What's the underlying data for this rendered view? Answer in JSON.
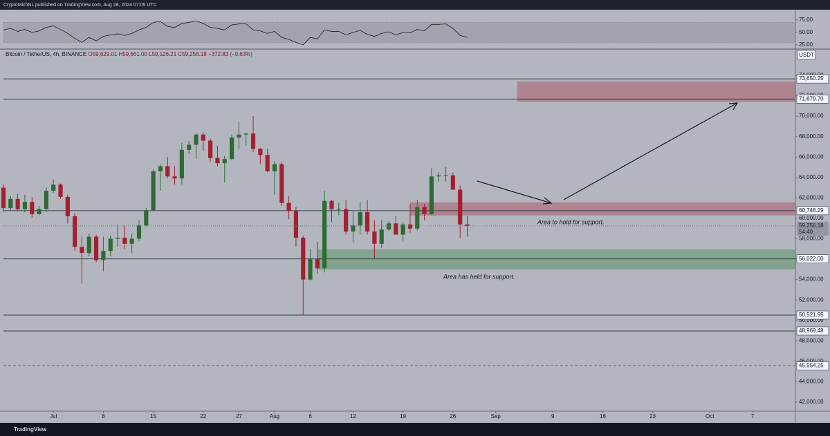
{
  "header": {
    "publisher": "CryptoMichNL published on TradingView.com, Aug 28, 2024 07:05 UTC"
  },
  "footer": {
    "brand": "TradingView"
  },
  "chart_data": [
    {
      "type": "candlestick",
      "symbol": "Bitcoin / TetherUS, 4h, BINANCE",
      "legend": [
        "O59,629.01",
        "H59,661.00",
        "L59,126.21",
        "C59,256.18",
        "−372.83 (−0.63%)"
      ],
      "currency": "USDT",
      "up_color": "#2e6b34",
      "down_color": "#a3212e",
      "x": [
        "06-24",
        "06-25",
        "06-26",
        "06-27",
        "06-28",
        "06-29",
        "06-30",
        "07-01",
        "07-02",
        "07-03",
        "07-04",
        "07-05",
        "07-06",
        "07-07",
        "07-08",
        "07-09",
        "07-10",
        "07-11",
        "07-12",
        "07-13",
        "07-14",
        "07-15",
        "07-16",
        "07-17",
        "07-18",
        "07-19",
        "07-20",
        "07-21",
        "07-22",
        "07-23",
        "07-24",
        "07-25",
        "07-26",
        "07-27",
        "07-28",
        "07-29",
        "07-30",
        "07-31",
        "08-01",
        "08-02",
        "08-03",
        "08-04",
        "08-05",
        "08-06",
        "08-07",
        "08-08",
        "08-09",
        "08-10",
        "08-11",
        "08-12",
        "08-13",
        "08-14",
        "08-15",
        "08-16",
        "08-17",
        "08-18",
        "08-19",
        "08-20",
        "08-21",
        "08-22",
        "08-23",
        "08-24",
        "08-25",
        "08-26",
        "08-27",
        "08-28"
      ],
      "open": [
        63000,
        61000,
        61900,
        60900,
        61600,
        60400,
        60900,
        62700,
        63300,
        62100,
        60200,
        57200,
        56600,
        58200,
        55900,
        56800,
        58000,
        58100,
        57500,
        58000,
        59300,
        60800,
        64600,
        65100,
        64100,
        63900,
        66700,
        67200,
        68200,
        67600,
        65900,
        65400,
        65800,
        67900,
        68200,
        68300,
        66800,
        66200,
        64600,
        65300,
        61500,
        60700,
        58100,
        54000,
        56000,
        55100,
        61700,
        60900,
        60900,
        58700,
        59300,
        60600,
        58700,
        57500,
        58900,
        59500,
        58400,
        59400,
        59000,
        61100,
        60400,
        64100,
        64200,
        64200,
        62800,
        59400
      ],
      "high": [
        63300,
        62200,
        62400,
        62300,
        62100,
        61200,
        63000,
        63800,
        63400,
        62300,
        60500,
        58300,
        58500,
        58400,
        58200,
        58300,
        59400,
        59300,
        58500,
        59800,
        61000,
        64800,
        65300,
        66000,
        65100,
        67400,
        67600,
        68300,
        68400,
        67800,
        67100,
        66100,
        68200,
        69400,
        68300,
        70000,
        66900,
        66800,
        65600,
        65500,
        62200,
        61100,
        58300,
        57000,
        57700,
        62700,
        61800,
        61500,
        61800,
        60700,
        61600,
        61800,
        59800,
        59800,
        59700,
        60200,
        59600,
        61400,
        61800,
        61400,
        64900,
        64500,
        65000,
        64500,
        63200,
        60200
      ],
      "low": [
        60600,
        60800,
        60700,
        60600,
        60100,
        60300,
        60600,
        62500,
        61900,
        59500,
        56800,
        53600,
        56300,
        55700,
        54800,
        56300,
        57200,
        57000,
        56600,
        57800,
        59200,
        60700,
        62700,
        63900,
        63300,
        63300,
        66300,
        65800,
        66600,
        65500,
        65100,
        63500,
        65700,
        66800,
        67100,
        66500,
        65300,
        64500,
        62300,
        61200,
        59900,
        57200,
        50500,
        53900,
        54600,
        54700,
        59600,
        60300,
        58400,
        57600,
        58400,
        58400,
        56100,
        57100,
        58800,
        58400,
        57800,
        58600,
        58800,
        59800,
        60300,
        63600,
        63600,
        62800,
        58100,
        58200
      ],
      "close": [
        61000,
        61900,
        60900,
        61600,
        60400,
        60900,
        62700,
        63300,
        62100,
        60200,
        57200,
        56600,
        58200,
        55900,
        56800,
        58000,
        58100,
        57500,
        58000,
        59300,
        60800,
        64600,
        65100,
        64100,
        63900,
        66700,
        67200,
        68200,
        67600,
        65900,
        65400,
        65800,
        67900,
        68200,
        68300,
        66800,
        66200,
        64600,
        65300,
        61500,
        60700,
        58100,
        54000,
        56000,
        55100,
        61700,
        60900,
        60900,
        58700,
        59300,
        60600,
        58700,
        57500,
        58900,
        59500,
        58400,
        59400,
        59000,
        61100,
        60400,
        64100,
        64200,
        64200,
        62800,
        59400,
        59256.18
      ],
      "xlim": [
        "06-24",
        "10-13"
      ],
      "xticks": [
        {
          "value": "07-01",
          "label": "Jul"
        },
        {
          "value": "07-08",
          "label": "8"
        },
        {
          "value": "07-15",
          "label": "15"
        },
        {
          "value": "07-22",
          "label": "22"
        },
        {
          "value": "07-27",
          "label": "27"
        },
        {
          "value": "08-01",
          "label": "Aug"
        },
        {
          "value": "08-06",
          "label": "6"
        },
        {
          "value": "08-12",
          "label": "12"
        },
        {
          "value": "08-19",
          "label": "19"
        },
        {
          "value": "08-26",
          "label": "26"
        },
        {
          "value": "09-01",
          "label": "Sep"
        },
        {
          "value": "09-09",
          "label": "9"
        },
        {
          "value": "09-16",
          "label": "16"
        },
        {
          "value": "09-23",
          "label": "23"
        },
        {
          "value": "10-01",
          "label": "Oct"
        },
        {
          "value": "10-07",
          "label": "7"
        }
      ],
      "ylim": [
        41120,
        76500
      ],
      "yticks": [
        {
          "value": 42000,
          "label": "42,000.00"
        },
        {
          "value": 44000,
          "label": "44,000.00"
        },
        {
          "value": 46000,
          "label": "46,000.00"
        },
        {
          "value": 48000,
          "label": "48,000.00"
        },
        {
          "value": 50000,
          "label": "50,000.00"
        },
        {
          "value": 52000,
          "label": "52,000.00"
        },
        {
          "value": 54000,
          "label": "54,000.00"
        },
        {
          "value": 56000,
          "label": "56,000.00"
        },
        {
          "value": 58000,
          "label": "58,000.00"
        },
        {
          "value": 60000,
          "label": "60,000.00"
        },
        {
          "value": 62000,
          "label": "62,000.00"
        },
        {
          "value": 64000,
          "label": "64,000.00"
        },
        {
          "value": 66000,
          "label": "66,000.00"
        },
        {
          "value": 68000,
          "label": "68,000.00"
        },
        {
          "value": 70000,
          "label": "70,000.00"
        },
        {
          "value": 72000,
          "label": "72,000.00"
        },
        {
          "value": 74000,
          "label": "74,000.00"
        }
      ],
      "levels": [
        {
          "value": 73650.25,
          "label": "73,650.25",
          "style": "solid"
        },
        {
          "value": 71679.7,
          "label": "71,679.70",
          "style": "solid"
        },
        {
          "value": 60748.29,
          "label": "60,748.29",
          "style": "solid"
        },
        {
          "value": 56022.0,
          "label": "56,022.00",
          "style": "solid"
        },
        {
          "value": 50521.95,
          "label": "50,521.95",
          "style": "solid"
        },
        {
          "value": 48969.48,
          "label": "48,969.48",
          "style": "solid"
        },
        {
          "value": 45554.25,
          "label": "45,554.25",
          "style": "dashed"
        }
      ],
      "last_price": {
        "value": 59256.18,
        "label": "59,256.18"
      },
      "countdown": "54:40",
      "zones": [
        {
          "from": 71400,
          "to": 73400,
          "start": "09-04",
          "color": "rgba(170,40,60,0.35)"
        },
        {
          "from": 60270,
          "to": 61550,
          "start": "08-20",
          "color": "rgba(170,40,60,0.35)"
        },
        {
          "from": 54990,
          "to": 56950,
          "start": "08-07",
          "color": "rgba(40,130,50,0.35)"
        }
      ],
      "annotations": [
        "Area to hold for support.",
        "Area has held for support."
      ]
    },
    {
      "type": "line",
      "color": "#1a1a1a",
      "values": [
        55,
        58,
        52,
        56,
        50,
        53,
        60,
        63,
        56,
        48,
        38,
        30,
        40,
        33,
        42,
        45,
        47,
        44,
        48,
        55,
        60,
        70,
        72,
        62,
        60,
        68,
        70,
        73,
        68,
        60,
        58,
        55,
        65,
        67,
        67,
        55,
        53,
        48,
        52,
        40,
        36,
        30,
        25,
        40,
        37,
        55,
        52,
        52,
        45,
        50,
        54,
        46,
        42,
        48,
        51,
        45,
        50,
        49,
        56,
        53,
        66,
        66,
        67,
        58,
        44,
        40
      ],
      "band": [
        30,
        70
      ],
      "ylim": [
        18,
        90
      ],
      "yticks": [
        {
          "value": 25,
          "label": "25.00"
        },
        {
          "value": 50,
          "label": "50.00"
        },
        {
          "value": 75,
          "label": "75.00"
        }
      ]
    }
  ]
}
